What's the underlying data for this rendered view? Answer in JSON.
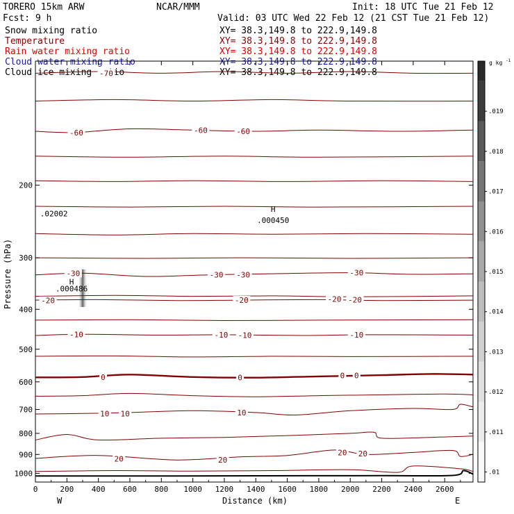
{
  "header": {
    "model": "TORERO  15km ARW",
    "org": "NCAR/MMM",
    "init": "Init: 18 UTC Tue 21 Feb 12",
    "fcst": "Fcst:     9 h",
    "valid": "Valid: 03 UTC Wed 22 Feb 12 (21 CST Tue 21 Feb 12)"
  },
  "fields": [
    {
      "name": "Snow mixing ratio",
      "color": "#000000",
      "xy": "XY=  38.3,149.8 to 222.9,149.8",
      "xy_color": "#000000"
    },
    {
      "name": "Temperature",
      "color": "#8b0000",
      "xy": "XY=  38.3,149.8 to 222.9,149.8",
      "xy_color": "#8b0000"
    },
    {
      "name": "Rain water mixing ratio",
      "color": "#dd0000",
      "xy": "XY=  38.3,149.8 to 222.9,149.8",
      "xy_color": "#dd0000"
    },
    {
      "name": "Cloud water mixing ratio",
      "color": "#1a1aaa",
      "xy": "XY=  38.3,149.8 to 222.9,149.8",
      "xy_color": "#1a1aaa"
    },
    {
      "name": "Cloud ice mixing ratio",
      "color": "#000000",
      "xy": "XY=  38.3,149.8 to 222.9,149.8",
      "xy_color": "#000000"
    }
  ],
  "colorbar": {
    "unit_label": "g kg",
    "unit_exp": "-1",
    "ticks": [
      ".019",
      ".018",
      ".017",
      ".016",
      ".015",
      ".014",
      ".013",
      ".012",
      ".011",
      ".01"
    ],
    "colors": [
      "#3c3c3c",
      "#5a5a5a",
      "#767676",
      "#909090",
      "#a8a8a8",
      "#bebebe",
      "#d0d0d0",
      "#e0e0e0",
      "#ececec",
      "#f8f8f8"
    ]
  },
  "chart_data": {
    "type": "line",
    "xlabel": "Distance (km)",
    "ylabel": "Pressure (hPa)",
    "x_range": [
      0,
      2780
    ],
    "x_ticks": [
      0,
      200,
      400,
      600,
      800,
      1000,
      1200,
      1400,
      1600,
      1800,
      2000,
      2200,
      2400,
      2600
    ],
    "y_range": [
      100,
      1050
    ],
    "y_scale": "log",
    "y_ticks": [
      200,
      300,
      400,
      500,
      600,
      700,
      800,
      900,
      1000
    ],
    "x_end_labels": {
      "left": "W",
      "right": "E"
    },
    "contour_color": "#800000",
    "zero_contour_color": "#800000",
    "isotherms": [
      {
        "level": -70,
        "label": "-70",
        "points": [
          [
            0,
            107
          ],
          [
            400,
            106
          ],
          [
            800,
            107
          ],
          [
            1200,
            106
          ],
          [
            1600,
            107
          ],
          [
            2000,
            106
          ],
          [
            2400,
            107
          ],
          [
            2780,
            107
          ]
        ],
        "labels_at": [
          [
            450,
            107
          ]
        ]
      },
      {
        "level": -65,
        "points": [
          [
            0,
            125
          ],
          [
            500,
            124
          ],
          [
            1000,
            125
          ],
          [
            1500,
            124
          ],
          [
            2000,
            125
          ],
          [
            2780,
            125
          ]
        ]
      },
      {
        "level": -60,
        "label": "-60",
        "points": [
          [
            0,
            148
          ],
          [
            250,
            149
          ],
          [
            600,
            146
          ],
          [
            1000,
            147
          ],
          [
            1400,
            148
          ],
          [
            1800,
            147
          ],
          [
            2300,
            148
          ],
          [
            2780,
            147
          ]
        ],
        "labels_at": [
          [
            260,
            149
          ],
          [
            1050,
            147
          ],
          [
            1320,
            148
          ]
        ]
      },
      {
        "level": -55,
        "points": [
          [
            0,
            170
          ],
          [
            600,
            171
          ],
          [
            1200,
            170
          ],
          [
            1800,
            171
          ],
          [
            2780,
            170
          ]
        ]
      },
      {
        "level": -50,
        "points": [
          [
            0,
            195
          ],
          [
            500,
            196
          ],
          [
            1000,
            195
          ],
          [
            1600,
            196
          ],
          [
            2200,
            195
          ],
          [
            2780,
            196
          ]
        ]
      },
      {
        "level": -45,
        "points": [
          [
            0,
            225
          ],
          [
            600,
            226
          ],
          [
            1200,
            225
          ],
          [
            1800,
            226
          ],
          [
            2780,
            225
          ]
        ]
      },
      {
        "level": -40,
        "points": [
          [
            0,
            262
          ],
          [
            500,
            264
          ],
          [
            1000,
            262
          ],
          [
            1500,
            263
          ],
          [
            2100,
            262
          ],
          [
            2780,
            263
          ]
        ]
      },
      {
        "level": -35,
        "points": [
          [
            0,
            300
          ],
          [
            700,
            301
          ],
          [
            1300,
            300
          ],
          [
            2000,
            301
          ],
          [
            2780,
            300
          ]
        ]
      },
      {
        "level": -30,
        "label": "-30",
        "points": [
          [
            0,
            330
          ],
          [
            300,
            327
          ],
          [
            700,
            333
          ],
          [
            1100,
            330
          ],
          [
            1500,
            328
          ],
          [
            2000,
            326
          ],
          [
            2400,
            329
          ],
          [
            2780,
            328
          ]
        ],
        "labels_at": [
          [
            240,
            327
          ],
          [
            1150,
            330
          ],
          [
            1320,
            330
          ],
          [
            2040,
            326
          ]
        ]
      },
      {
        "level": -25,
        "points": [
          [
            0,
            372
          ],
          [
            500,
            370
          ],
          [
            1000,
            372
          ],
          [
            1500,
            371
          ],
          [
            2000,
            373
          ],
          [
            2780,
            371
          ]
        ]
      },
      {
        "level": -20,
        "label": "-20",
        "points": [
          [
            0,
            380
          ],
          [
            400,
            379
          ],
          [
            900,
            381
          ],
          [
            1300,
            380
          ],
          [
            1800,
            379
          ],
          [
            2200,
            381
          ],
          [
            2780,
            380
          ]
        ],
        "labels_at": [
          [
            80,
            381
          ],
          [
            1310,
            380
          ],
          [
            1900,
            378
          ],
          [
            2030,
            379
          ]
        ]
      },
      {
        "level": -15,
        "points": [
          [
            0,
            425
          ],
          [
            600,
            424
          ],
          [
            1200,
            426
          ],
          [
            1800,
            425
          ],
          [
            2780,
            424
          ]
        ]
      },
      {
        "level": -10,
        "label": "-10",
        "points": [
          [
            0,
            463
          ],
          [
            300,
            460
          ],
          [
            800,
            462
          ],
          [
            1200,
            461
          ],
          [
            1700,
            463
          ],
          [
            2100,
            461
          ],
          [
            2780,
            462
          ]
        ],
        "labels_at": [
          [
            260,
            460
          ],
          [
            1180,
            461
          ],
          [
            1330,
            462
          ],
          [
            2040,
            461
          ]
        ]
      },
      {
        "level": -5,
        "points": [
          [
            0,
            520
          ],
          [
            500,
            519
          ],
          [
            1000,
            522
          ],
          [
            1500,
            520
          ],
          [
            2000,
            521
          ],
          [
            2780,
            520
          ]
        ]
      },
      {
        "level": 0,
        "label": "0",
        "zero": true,
        "points": [
          [
            0,
            585
          ],
          [
            300,
            584
          ],
          [
            600,
            576
          ],
          [
            1000,
            584
          ],
          [
            1400,
            586
          ],
          [
            1800,
            582
          ],
          [
            2200,
            578
          ],
          [
            2500,
            574
          ],
          [
            2780,
            576
          ]
        ],
        "labels_at": [
          [
            430,
            584
          ],
          [
            1300,
            586
          ],
          [
            1950,
            579
          ],
          [
            2040,
            579
          ]
        ]
      },
      {
        "level": 5,
        "points": [
          [
            0,
            650
          ],
          [
            300,
            648
          ],
          [
            600,
            640
          ],
          [
            1000,
            648
          ],
          [
            1400,
            652
          ],
          [
            1800,
            648
          ],
          [
            2200,
            645
          ],
          [
            2600,
            642
          ],
          [
            2780,
            645
          ]
        ]
      },
      {
        "level": 10,
        "label": "10",
        "points": [
          [
            0,
            718
          ],
          [
            300,
            716
          ],
          [
            600,
            712
          ],
          [
            1000,
            705
          ],
          [
            1400,
            712
          ],
          [
            1650,
            722
          ],
          [
            2000,
            705
          ],
          [
            2400,
            696
          ],
          [
            2650,
            700
          ],
          [
            2700,
            680
          ],
          [
            2780,
            690
          ]
        ],
        "labels_at": [
          [
            440,
            716
          ],
          [
            570,
            716
          ],
          [
            1310,
            712
          ]
        ]
      },
      {
        "level": 15,
        "points": [
          [
            0,
            830
          ],
          [
            200,
            805
          ],
          [
            400,
            830
          ],
          [
            800,
            822
          ],
          [
            1200,
            818
          ],
          [
            1600,
            810
          ],
          [
            2000,
            800
          ],
          [
            2150,
            795
          ],
          [
            2200,
            822
          ],
          [
            2500,
            818
          ],
          [
            2780,
            812
          ]
        ]
      },
      {
        "level": 20,
        "label": "20",
        "points": [
          [
            0,
            920
          ],
          [
            400,
            905
          ],
          [
            900,
            928
          ],
          [
            1300,
            912
          ],
          [
            1600,
            905
          ],
          [
            1900,
            878
          ],
          [
            2100,
            900
          ],
          [
            2400,
            890
          ],
          [
            2650,
            880
          ],
          [
            2700,
            910
          ],
          [
            2780,
            900
          ]
        ],
        "labels_at": [
          [
            530,
            922
          ],
          [
            1190,
            928
          ],
          [
            1950,
            890
          ],
          [
            2080,
            895
          ]
        ]
      },
      {
        "level": 25,
        "points": [
          [
            0,
            990
          ],
          [
            500,
            985
          ],
          [
            1000,
            988
          ],
          [
            1500,
            985
          ],
          [
            2000,
            980
          ],
          [
            2300,
            995
          ],
          [
            2400,
            960
          ],
          [
            2700,
            975
          ],
          [
            2780,
            990
          ]
        ]
      }
    ],
    "terrain": {
      "points": [
        [
          0,
          1015
        ],
        [
          700,
          1015
        ],
        [
          1400,
          1014
        ],
        [
          2200,
          1013
        ],
        [
          2650,
          1012
        ],
        [
          2720,
          985
        ],
        [
          2780,
          1005
        ]
      ],
      "color": "#000000"
    },
    "annotations": [
      {
        "text": "H",
        "x": 1510,
        "y": 232
      },
      {
        "text": ".000450",
        "x": 1510,
        "y": 247
      },
      {
        "text": "H",
        "x": 230,
        "y": 348
      },
      {
        "text": ".000486",
        "x": 230,
        "y": 362
      },
      {
        "text": ".02002",
        "x": 30,
        "y": 238
      }
    ],
    "max_blob": {
      "x": 300,
      "y_top": 320,
      "y_bottom": 395,
      "color": "#444444"
    }
  }
}
